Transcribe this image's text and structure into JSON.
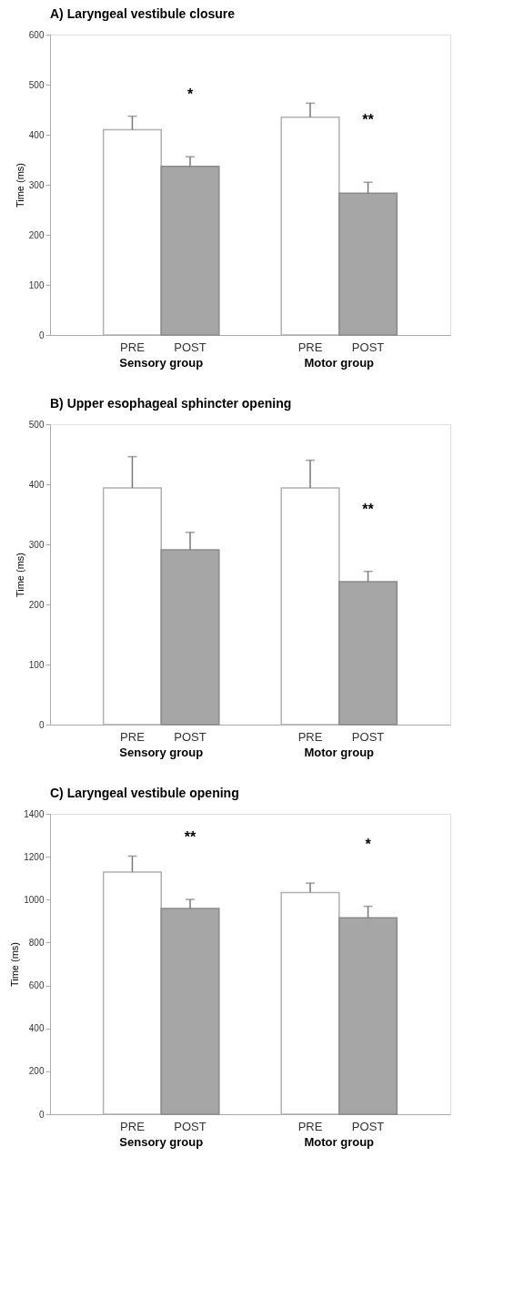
{
  "chart_data": [
    {
      "type": "bar",
      "title": "A) Laryngeal vestibule closure",
      "ylabel": "Time (ms)",
      "categories": [
        "Sensory group",
        "Motor group"
      ],
      "series": [
        {
          "name": "PRE",
          "color": "#ffffff",
          "values": [
            410,
            435
          ],
          "errors": [
            27,
            28
          ]
        },
        {
          "name": "POST",
          "color": "#a6a6a6",
          "values": [
            337,
            283
          ],
          "errors": [
            19,
            22
          ]
        }
      ],
      "ylim": [
        0,
        600
      ],
      "yticks": [
        0,
        100,
        200,
        300,
        400,
        500,
        600
      ],
      "grid": false,
      "legend": false,
      "annotations": [
        "*",
        "**"
      ]
    },
    {
      "type": "bar",
      "title": "B) Upper esophageal sphincter opening",
      "ylabel": "Time (ms)",
      "categories": [
        "Sensory group",
        "Motor group"
      ],
      "series": [
        {
          "name": "PRE",
          "color": "#ffffff",
          "values": [
            394,
            394
          ],
          "errors": [
            52,
            46
          ]
        },
        {
          "name": "POST",
          "color": "#a6a6a6",
          "values": [
            291,
            238
          ],
          "errors": [
            29,
            17
          ]
        }
      ],
      "ylim": [
        0,
        500
      ],
      "yticks": [
        0,
        100,
        200,
        300,
        400,
        500
      ],
      "grid": false,
      "legend": false,
      "annotations": [
        "**"
      ]
    },
    {
      "type": "bar",
      "title": "C) Laryngeal vestibule opening",
      "ylabel": "Time (ms)",
      "categories": [
        "Sensory group",
        "Motor group"
      ],
      "series": [
        {
          "name": "PRE",
          "color": "#ffffff",
          "values": [
            1129,
            1033
          ],
          "errors": [
            74,
            44
          ]
        },
        {
          "name": "POST",
          "color": "#a6a6a6",
          "values": [
            959,
            915
          ],
          "errors": [
            42,
            54
          ]
        }
      ],
      "ylim": [
        0,
        1400
      ],
      "yticks": [
        0,
        200,
        400,
        600,
        800,
        {
          "value": 1000,
          "label": "1000"
        },
        {
          "value": 1200,
          "label": "1200"
        },
        {
          "value": 1400,
          "label": "1400"
        }
      ],
      "grid": false,
      "legend": false,
      "annotations": [
        "**",
        "*"
      ]
    }
  ]
}
